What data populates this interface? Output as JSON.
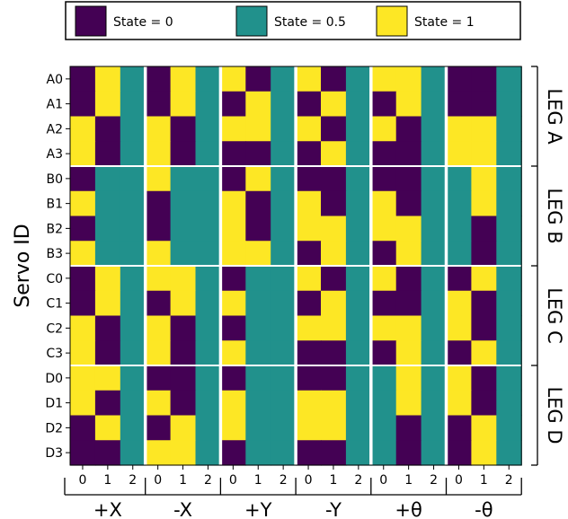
{
  "chart_data": {
    "type": "heatmap",
    "ylabel": "Servo ID",
    "legend": {
      "placement": "top",
      "items": [
        {
          "label": "State = 0",
          "value": 0
        },
        {
          "label": "State = 0.5",
          "value": 0.5
        },
        {
          "label": "State = 1",
          "value": 1
        }
      ]
    },
    "colors": {
      "0": "#440154",
      "0.5": "#21918c",
      "1": "#fde725"
    },
    "rows": [
      "A0",
      "A1",
      "A2",
      "A3",
      "B0",
      "B1",
      "B2",
      "B3",
      "C0",
      "C1",
      "C2",
      "C3",
      "D0",
      "D1",
      "D2",
      "D3"
    ],
    "column_ticks": [
      "0",
      "1",
      "2"
    ],
    "groups": [
      {
        "name": "+X",
        "values": [
          [
            0,
            1,
            0.5
          ],
          [
            0,
            1,
            0.5
          ],
          [
            1,
            0,
            0.5
          ],
          [
            1,
            0,
            0.5
          ],
          [
            0,
            0.5,
            0.5
          ],
          [
            1,
            0.5,
            0.5
          ],
          [
            0,
            0.5,
            0.5
          ],
          [
            1,
            0.5,
            0.5
          ],
          [
            0,
            1,
            0.5
          ],
          [
            0,
            1,
            0.5
          ],
          [
            1,
            0,
            0.5
          ],
          [
            1,
            0,
            0.5
          ],
          [
            1,
            1,
            0.5
          ],
          [
            1,
            0,
            0.5
          ],
          [
            0,
            1,
            0.5
          ],
          [
            0,
            0,
            0.5
          ]
        ]
      },
      {
        "name": "-X",
        "values": [
          [
            0,
            1,
            0.5
          ],
          [
            0,
            1,
            0.5
          ],
          [
            1,
            0,
            0.5
          ],
          [
            1,
            0,
            0.5
          ],
          [
            1,
            0.5,
            0.5
          ],
          [
            0,
            0.5,
            0.5
          ],
          [
            0,
            0.5,
            0.5
          ],
          [
            1,
            0.5,
            0.5
          ],
          [
            1,
            1,
            0.5
          ],
          [
            0,
            1,
            0.5
          ],
          [
            1,
            0,
            0.5
          ],
          [
            1,
            0,
            0.5
          ],
          [
            0,
            0,
            0.5
          ],
          [
            1,
            0,
            0.5
          ],
          [
            0,
            1,
            0.5
          ],
          [
            1,
            1,
            0.5
          ]
        ]
      },
      {
        "name": "+Y",
        "values": [
          [
            1,
            0,
            0.5
          ],
          [
            0,
            1,
            0.5
          ],
          [
            1,
            1,
            0.5
          ],
          [
            0,
            0,
            0.5
          ],
          [
            0,
            1,
            0.5
          ],
          [
            1,
            0,
            0.5
          ],
          [
            1,
            0,
            0.5
          ],
          [
            1,
            1,
            0.5
          ],
          [
            0,
            0.5,
            0.5
          ],
          [
            1,
            0.5,
            0.5
          ],
          [
            0,
            0.5,
            0.5
          ],
          [
            1,
            0.5,
            0.5
          ],
          [
            0,
            0.5,
            0.5
          ],
          [
            1,
            0.5,
            0.5
          ],
          [
            1,
            0.5,
            0.5
          ],
          [
            0,
            0.5,
            0.5
          ]
        ]
      },
      {
        "name": "-Y",
        "values": [
          [
            1,
            0,
            0.5
          ],
          [
            0,
            1,
            0.5
          ],
          [
            1,
            0,
            0.5
          ],
          [
            0,
            1,
            0.5
          ],
          [
            0,
            0,
            0.5
          ],
          [
            1,
            0,
            0.5
          ],
          [
            1,
            1,
            0.5
          ],
          [
            0,
            1,
            0.5
          ],
          [
            1,
            0,
            0.5
          ],
          [
            0,
            1,
            0.5
          ],
          [
            1,
            1,
            0.5
          ],
          [
            0,
            0,
            0.5
          ],
          [
            0,
            0,
            0.5
          ],
          [
            1,
            1,
            0.5
          ],
          [
            1,
            1,
            0.5
          ],
          [
            0,
            0,
            0.5
          ]
        ]
      },
      {
        "name": "+θ",
        "values": [
          [
            1,
            1,
            0.5
          ],
          [
            0,
            1,
            0.5
          ],
          [
            1,
            0,
            0.5
          ],
          [
            0,
            0,
            0.5
          ],
          [
            0,
            0,
            0.5
          ],
          [
            1,
            0,
            0.5
          ],
          [
            1,
            1,
            0.5
          ],
          [
            0,
            1,
            0.5
          ],
          [
            1,
            0,
            0.5
          ],
          [
            0,
            0,
            0.5
          ],
          [
            1,
            1,
            0.5
          ],
          [
            0,
            1,
            0.5
          ],
          [
            0.5,
            1,
            0.5
          ],
          [
            0.5,
            1,
            0.5
          ],
          [
            0.5,
            0,
            0.5
          ],
          [
            0.5,
            0,
            0.5
          ]
        ]
      },
      {
        "name": "-θ",
        "values": [
          [
            0,
            0,
            0.5
          ],
          [
            0,
            0,
            0.5
          ],
          [
            1,
            1,
            0.5
          ],
          [
            1,
            1,
            0.5
          ],
          [
            0.5,
            1,
            0.5
          ],
          [
            0.5,
            1,
            0.5
          ],
          [
            0.5,
            0,
            0.5
          ],
          [
            0.5,
            0,
            0.5
          ],
          [
            0,
            1,
            0.5
          ],
          [
            1,
            0,
            0.5
          ],
          [
            1,
            0,
            0.5
          ],
          [
            0,
            1,
            0.5
          ],
          [
            1,
            0,
            0.5
          ],
          [
            1,
            0,
            0.5
          ],
          [
            0,
            1,
            0.5
          ],
          [
            0,
            1,
            0.5
          ]
        ]
      }
    ],
    "leg_labels": [
      "LEG A",
      "LEG B",
      "LEG C",
      "LEG D"
    ]
  }
}
